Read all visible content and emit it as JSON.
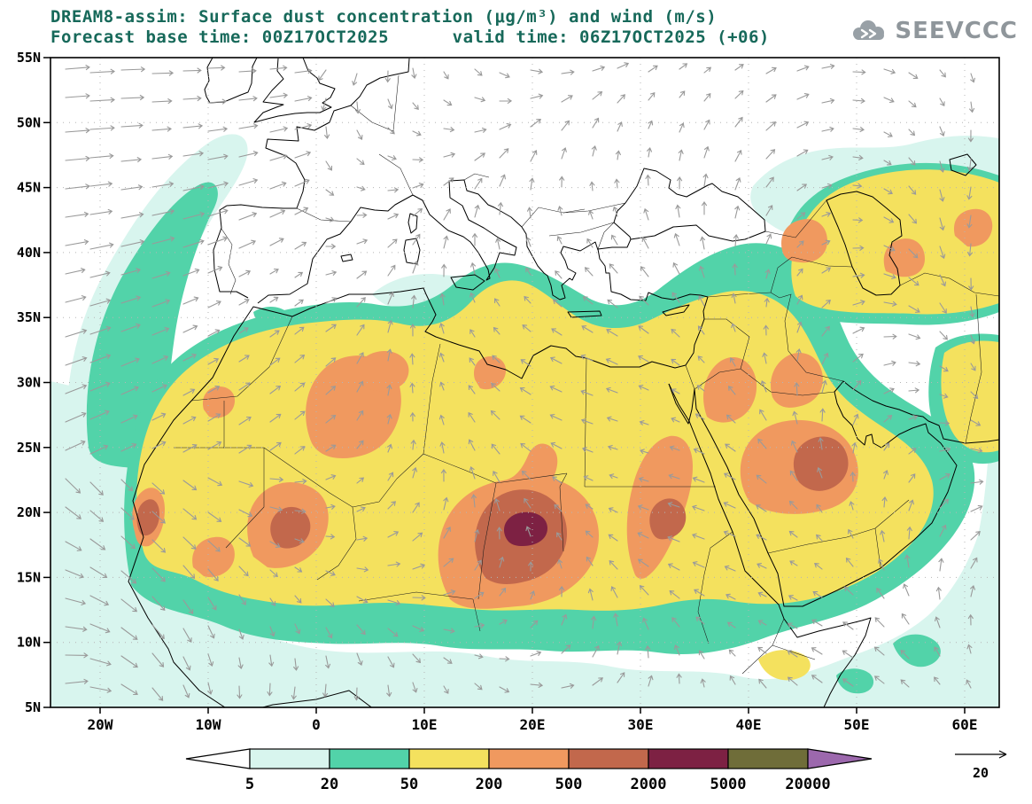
{
  "header": {
    "title_line1": "DREAM8-assim: Surface dust concentration (μg/m³) and wind (m/s)",
    "title_line2": "Forecast base time: 00Z17OCT2025      valid time: 06Z17OCT2025 (+06)",
    "logo_text": "SEEVCCC"
  },
  "chart_data": {
    "type": "heatmap",
    "title": "DREAM8-assim: Surface dust concentration (μg/m³) and wind (m/s)",
    "model": "DREAM8-assim",
    "variable": "Surface dust concentration",
    "units": "μg/m³",
    "wind_units": "m/s",
    "forecast_base_time": "00Z17OCT2025",
    "valid_time": "06Z17OCT2025",
    "forecast_offset": "+06",
    "x_axis": {
      "tick_labels": [
        "20W",
        "10W",
        "0",
        "10E",
        "20E",
        "30E",
        "40E",
        "50E",
        "60E"
      ],
      "range_deg": [
        -24.6,
        63.2
      ]
    },
    "y_axis": {
      "tick_labels": [
        "5N",
        "10N",
        "15N",
        "20N",
        "25N",
        "30N",
        "35N",
        "40N",
        "45N",
        "50N",
        "55N"
      ],
      "range_deg": [
        5,
        55
      ]
    },
    "colorbar": {
      "orientation": "horizontal",
      "levels": [
        "5",
        "20",
        "50",
        "200",
        "500",
        "2000",
        "5000",
        "20000"
      ],
      "colors": [
        "#ffffff",
        "#d8f5ee",
        "#52d3a9",
        "#f4e15e",
        "#f0995f",
        "#c2684c",
        "#7d2143",
        "#6f6d39",
        "#9c68ad"
      ]
    },
    "wind_reference": {
      "value": "20",
      "units": "m/s"
    },
    "notable_maxima": [
      {
        "approx_lon": "19E",
        "approx_lat": "18N",
        "level": "2000-5000 μg/m³"
      },
      {
        "approx_lon": "44E",
        "approx_lat": "24N",
        "level": "500-2000 μg/m³"
      },
      {
        "approx_lon": "32E",
        "approx_lat": "20N",
        "level": "500-2000 μg/m³"
      },
      {
        "approx_lon": "2W",
        "approx_lat": "19N",
        "level": "500-2000 μg/m³"
      }
    ]
  },
  "styles": {
    "title_color": "#17695a",
    "arrow_color": "#9a9a9a",
    "grid_color": "#b5b5b5",
    "frame_color": "#000000",
    "logo_color": "#8f969b"
  }
}
